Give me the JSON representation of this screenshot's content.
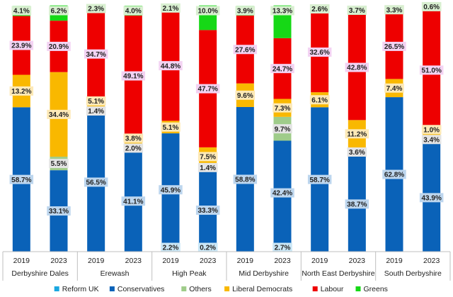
{
  "chart_data": {
    "type": "stacked-bar",
    "title": "",
    "ylim": [
      0,
      100
    ],
    "stack_order": [
      "Reform UK",
      "Conservatives",
      "Others",
      "Liberal Democrats",
      "Labour",
      "Greens"
    ],
    "colors": {
      "Reform UK": "#1aa7e0",
      "Conservatives": "#0a62b8",
      "Others": "#9fcc8a",
      "Liberal Democrats": "#f9b800",
      "Labour": "#ee0000",
      "Greens": "#16d816"
    },
    "label_bg": {
      "Reform UK": "#cbe7f6",
      "Conservatives": "#bdd6ee",
      "Others": "#e4e4e4",
      "Liberal Democrats": "#fde9b6",
      "Labour": "#f3d3f3",
      "Greens": "#d8efd0"
    },
    "groups": [
      {
        "name": "Derbyshire Dales",
        "bars": [
          {
            "year": "2019",
            "values": {
              "Reform UK": 0,
              "Conservatives": 58.7,
              "Others": 0,
              "Liberal Democrats": 13.2,
              "Labour": 23.9,
              "Greens": 4.1
            },
            "labels": {
              "Conservatives": "58.7%",
              "Liberal Democrats": "13.2%",
              "Labour": "23.9%",
              "Greens": "4.1%"
            }
          },
          {
            "year": "2023",
            "values": {
              "Reform UK": 0,
              "Conservatives": 33.1,
              "Others": 5.5,
              "Liberal Democrats": 34.4,
              "Labour": 20.9,
              "Greens": 6.2
            },
            "labels": {
              "Conservatives": "33.1%",
              "Others": "5.5%",
              "Liberal Democrats": "34.4%",
              "Labour": "20.9%",
              "Greens": "6.2%"
            }
          }
        ]
      },
      {
        "name": "Erewash",
        "bars": [
          {
            "year": "2019",
            "values": {
              "Reform UK": 0,
              "Conservatives": 56.5,
              "Others": 1.4,
              "Liberal Democrats": 5.1,
              "Labour": 34.7,
              "Greens": 2.3
            },
            "labels": {
              "Conservatives": "56.5%",
              "Others": "1.4%",
              "Liberal Democrats": "5.1%",
              "Labour": "34.7%",
              "Greens": "2.3%"
            }
          },
          {
            "year": "2023",
            "values": {
              "Reform UK": 0,
              "Conservatives": 41.1,
              "Others": 2.0,
              "Liberal Democrats": 3.8,
              "Labour": 49.1,
              "Greens": 4.0
            },
            "labels": {
              "Conservatives": "41.1%",
              "Others": "2.0%",
              "Liberal Democrats": "3.8%",
              "Labour": "49.1%",
              "Greens": "4.0%"
            }
          }
        ]
      },
      {
        "name": "High Peak",
        "bars": [
          {
            "year": "2019",
            "values": {
              "Reform UK": 2.2,
              "Conservatives": 45.9,
              "Others": 0,
              "Liberal Democrats": 5.1,
              "Labour": 44.8,
              "Greens": 2.1
            },
            "labels": {
              "Reform UK": "2.2%",
              "Conservatives": "45.9%",
              "Liberal Democrats": "5.1%",
              "Labour": "44.8%",
              "Greens": "2.1%"
            }
          },
          {
            "year": "2023",
            "values": {
              "Reform UK": 0.2,
              "Conservatives": 33.3,
              "Others": 1.4,
              "Liberal Democrats": 7.5,
              "Labour": 47.7,
              "Greens": 10.0
            },
            "labels": {
              "Reform UK": "0.2%",
              "Conservatives": "33.3%",
              "Others": "1.4%",
              "Liberal Democrats": "7.5%",
              "Labour": "47.7%",
              "Greens": "10.0%"
            }
          }
        ]
      },
      {
        "name": "Mid Derbyshire",
        "bars": [
          {
            "year": "2019",
            "values": {
              "Reform UK": 0,
              "Conservatives": 58.8,
              "Others": 0,
              "Liberal Democrats": 9.6,
              "Labour": 27.6,
              "Greens": 3.9
            },
            "labels": {
              "Conservatives": "58.8%",
              "Liberal Democrats": "9.6%",
              "Labour": "27.6%",
              "Greens": "3.9%"
            }
          },
          {
            "year": "2023",
            "values": {
              "Reform UK": 2.7,
              "Conservatives": 42.4,
              "Others": 9.7,
              "Liberal Democrats": 7.3,
              "Labour": 24.7,
              "Greens": 13.3
            },
            "labels": {
              "Reform UK": "2.7%",
              "Conservatives": "42.4%",
              "Others": "9.7%",
              "Liberal Democrats": "7.3%",
              "Labour": "24.7%",
              "Greens": "13.3%"
            }
          }
        ]
      },
      {
        "name": "North East Derbyshire",
        "bars": [
          {
            "year": "2019",
            "values": {
              "Reform UK": 0,
              "Conservatives": 58.7,
              "Others": 0,
              "Liberal Democrats": 6.1,
              "Labour": 32.6,
              "Greens": 2.6
            },
            "labels": {
              "Conservatives": "58.7%",
              "Liberal Democrats": "6.1%",
              "Labour": "32.6%",
              "Greens": "2.6%"
            }
          },
          {
            "year": "2023",
            "values": {
              "Reform UK": 0,
              "Conservatives": 38.7,
              "Others": 3.6,
              "Liberal Democrats": 11.2,
              "Labour": 42.8,
              "Greens": 3.7
            },
            "labels": {
              "Conservatives": "38.7%",
              "Others": "3.6%",
              "Liberal Democrats": "11.2%",
              "Labour": "42.8%",
              "Greens": "3.7%"
            }
          }
        ]
      },
      {
        "name": "South Derbyshire",
        "bars": [
          {
            "year": "2019",
            "values": {
              "Reform UK": 0,
              "Conservatives": 62.8,
              "Others": 0,
              "Liberal Democrats": 7.4,
              "Labour": 26.5,
              "Greens": 3.3
            },
            "labels": {
              "Conservatives": "62.8%",
              "Liberal Democrats": "7.4%",
              "Labour": "26.5%",
              "Greens": "3.3%"
            }
          },
          {
            "year": "2023",
            "values": {
              "Reform UK": 0,
              "Conservatives": 43.9,
              "Others": 3.4,
              "Liberal Democrats": 1.0,
              "Labour": 51.0,
              "Greens": 0.6
            },
            "labels": {
              "Conservatives": "43.9%",
              "Others": "3.4%",
              "Liberal Democrats": "1.0%",
              "Labour": "51.0%",
              "Greens": "0.6%"
            }
          }
        ]
      }
    ],
    "legend": [
      "Reform UK",
      "Conservatives",
      "Others",
      "Liberal Democrats",
      "Labour",
      "Greens"
    ],
    "legend_position": "bottom"
  }
}
